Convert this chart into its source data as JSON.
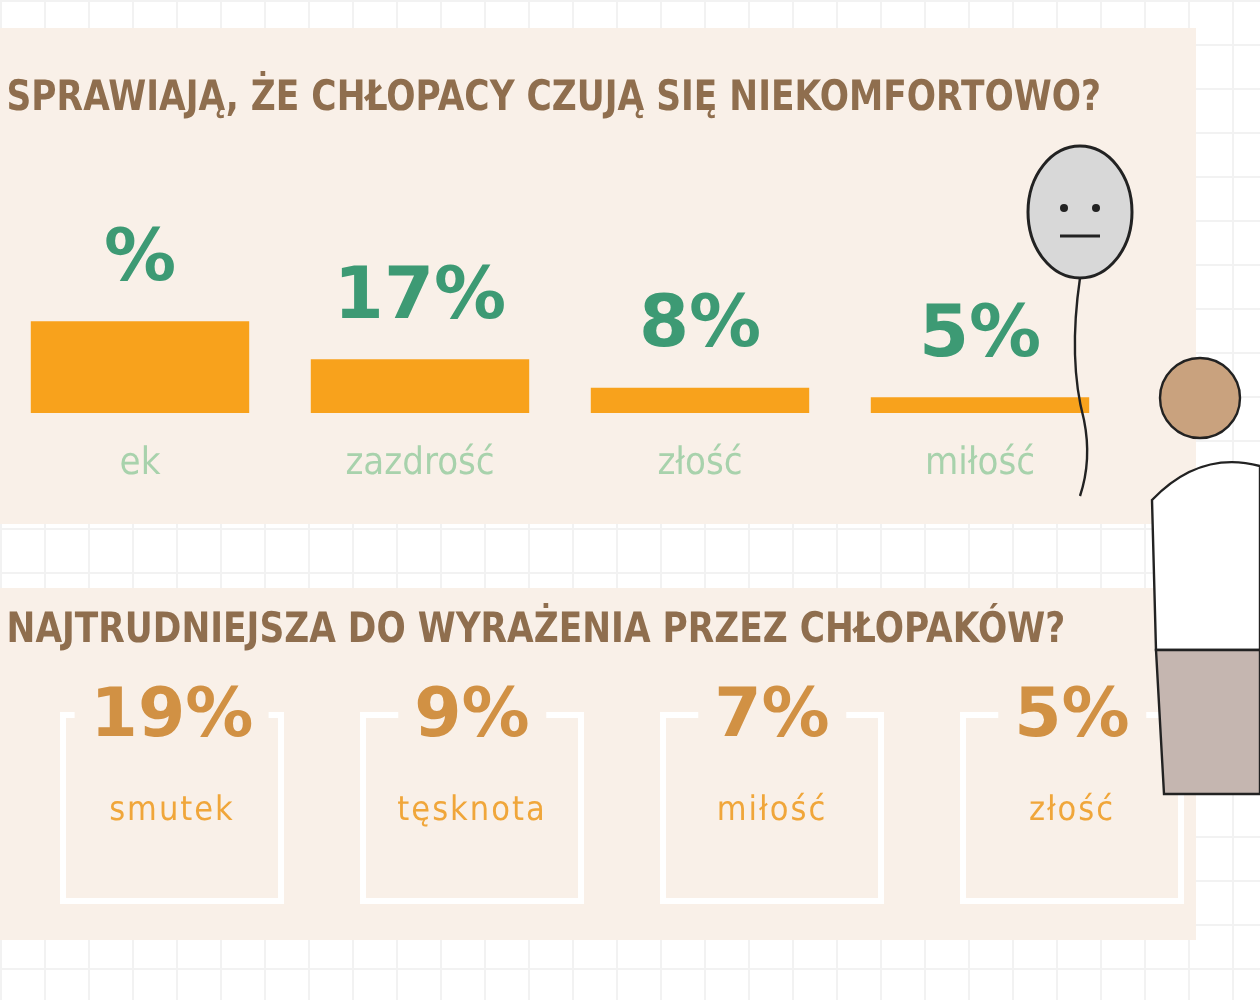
{
  "chart_data": [
    {
      "type": "bar",
      "title": "SPRAWIAJĄ, ŻE CHŁOPACY CZUJĄ SIĘ NIEKOMFORTOWO?",
      "categories": [
        "ek",
        "zazdrość",
        "złość",
        "miłość"
      ],
      "values": [
        29,
        17,
        8,
        5
      ],
      "value_labels": [
        "%",
        "17%",
        "8%",
        "5%"
      ],
      "color": "#f8a21c",
      "tick_labels": "x",
      "grid": false,
      "legend": false
    },
    {
      "type": "other",
      "title": "NAJTRUDNIEJSZA DO WYRAŻENIA PRZEZ CHŁOPAKÓW?",
      "categories": [
        "smutek",
        "tęsknota",
        "miłość",
        "złość"
      ],
      "value_labels": [
        "19%",
        "9%",
        "7%",
        "5%"
      ]
    }
  ]
}
